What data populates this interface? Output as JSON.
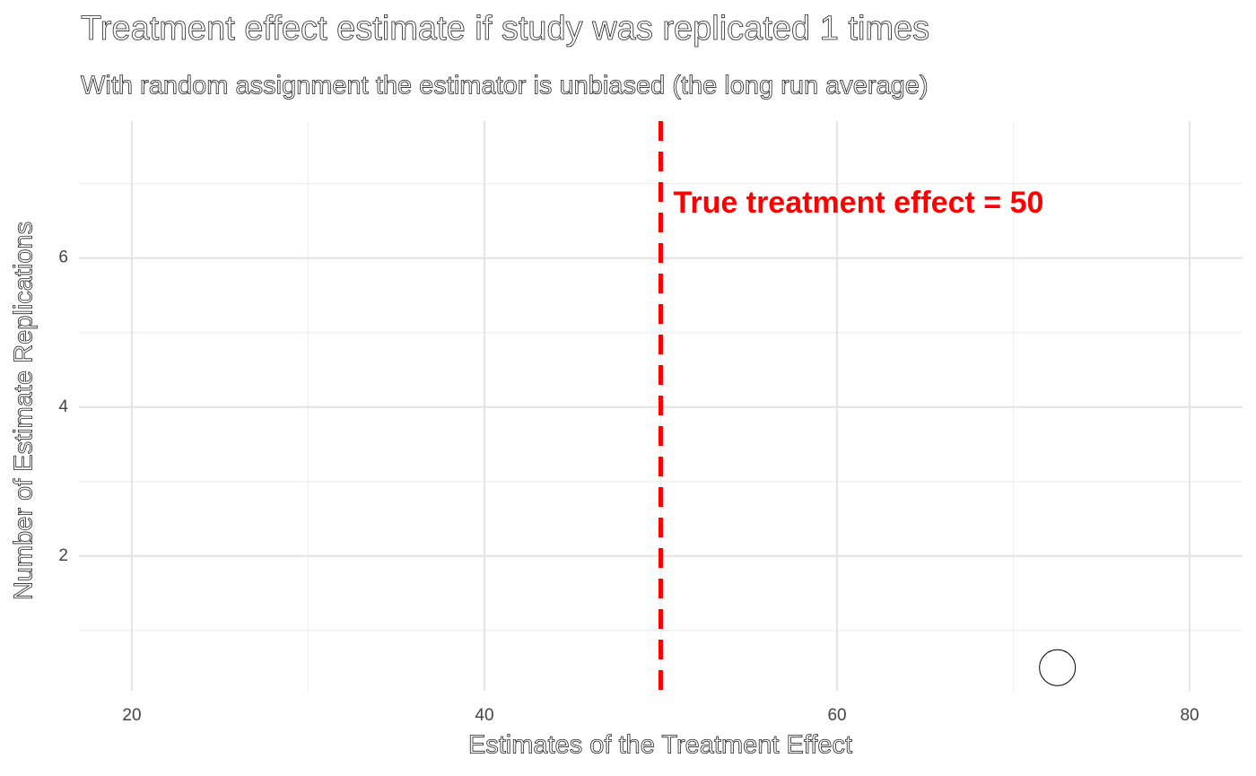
{
  "chart_data": {
    "type": "dot",
    "title": "Treatment effect estimate if study was replicated 1 times",
    "subtitle": "With random assignment the estimator is unbiased (the long run average)",
    "x_label": "Estimates of the Treatment Effect",
    "y_label": "Number of Estimate Replications",
    "x": [
      72.5
    ],
    "values": [
      0.5
    ],
    "point_fill": "#ffffff",
    "point_stroke": "#000000",
    "xlim": [
      17,
      83
    ],
    "ylim": [
      0.19,
      7.84
    ],
    "xticks": [
      20,
      40,
      60,
      80
    ],
    "yticks": [
      2,
      4,
      6
    ],
    "xminor": [
      30,
      50,
      70
    ],
    "yminor": [
      1,
      3,
      5,
      7
    ],
    "grid": true,
    "vline": {
      "x": 50,
      "color": "#ff0000",
      "label": "True treatment effect = 50"
    }
  }
}
